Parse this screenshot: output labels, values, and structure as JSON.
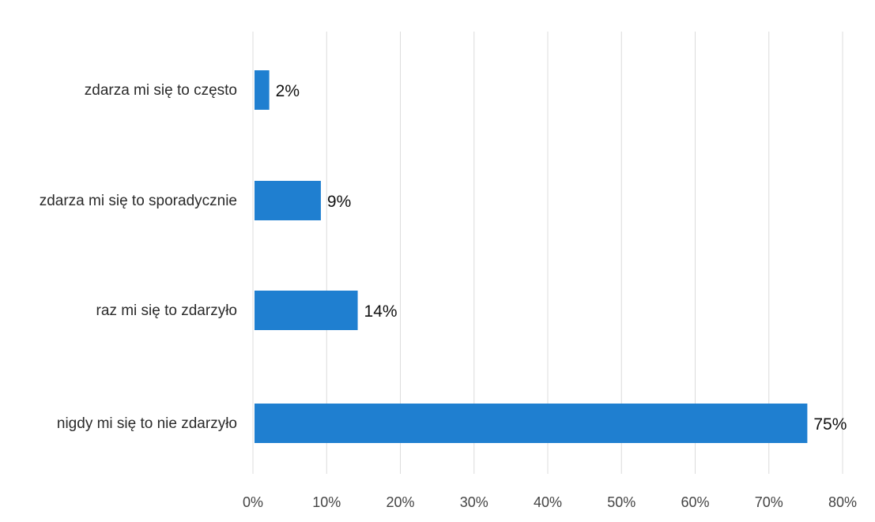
{
  "colors": {
    "bar": "#1f7fd0",
    "grid": "#dcdcdc",
    "background": "#ffffff"
  },
  "chart_data": {
    "type": "bar",
    "orientation": "horizontal",
    "title": "",
    "xlabel": "",
    "ylabel": "",
    "categories": [
      "zdarza mi się to często",
      "zdarza mi się to sporadycznie",
      "raz mi się to zdarzyło",
      "nigdy mi się to nie zdarzyło"
    ],
    "values": [
      2,
      9,
      14,
      75
    ],
    "value_labels": [
      "2%",
      "9%",
      "14%",
      "75%"
    ],
    "xlim": [
      0,
      80
    ],
    "x_ticks": [
      0,
      10,
      20,
      30,
      40,
      50,
      60,
      70,
      80
    ],
    "x_tick_labels": [
      "0%",
      "10%",
      "20%",
      "30%",
      "40%",
      "50%",
      "60%",
      "70%",
      "80%"
    ],
    "grid": true,
    "legend": "none"
  }
}
